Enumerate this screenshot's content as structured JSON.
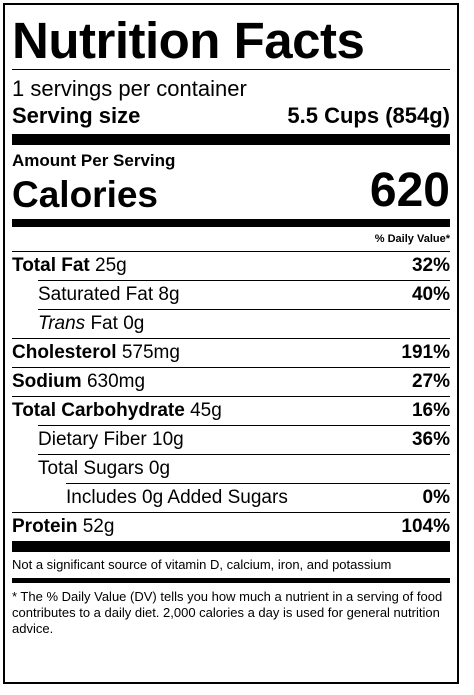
{
  "title": "Nutrition Facts",
  "servings_per_container": "1 servings per container",
  "serving_size_label": "Serving size",
  "serving_size_value": "5.5 Cups (854g)",
  "amount_per_serving": "Amount Per Serving",
  "calories_label": "Calories",
  "calories_value": "620",
  "daily_value_header": "% Daily Value*",
  "nutrients": {
    "total_fat": {
      "label": "Total Fat",
      "amount": "25g",
      "dv": "32%"
    },
    "saturated_fat": {
      "label": "Saturated Fat",
      "amount": "8g",
      "dv": "40%"
    },
    "trans_fat": {
      "label_italic": "Trans",
      "label": "Fat",
      "amount": "0g",
      "dv": ""
    },
    "cholesterol": {
      "label": "Cholesterol",
      "amount": "575mg",
      "dv": "191%"
    },
    "sodium": {
      "label": "Sodium",
      "amount": "630mg",
      "dv": "27%"
    },
    "total_carbohydrate": {
      "label": "Total Carbohydrate",
      "amount": "45g",
      "dv": "16%"
    },
    "dietary_fiber": {
      "label": "Dietary Fiber",
      "amount": "10g",
      "dv": "36%"
    },
    "total_sugars": {
      "label": "Total Sugars",
      "amount": "0g",
      "dv": ""
    },
    "added_sugars": {
      "label": "Includes 0g Added Sugars",
      "dv": "0%"
    },
    "protein": {
      "label": "Protein",
      "amount": "52g",
      "dv": "104%"
    }
  },
  "not_significant_note": "Not a significant source of vitamin D, calcium, iron, and potassium",
  "footnote": "* The % Daily Value (DV) tells you how much a nutrient in a serving of food contributes to a daily diet. 2,000 calories a day is used for general nutrition advice."
}
